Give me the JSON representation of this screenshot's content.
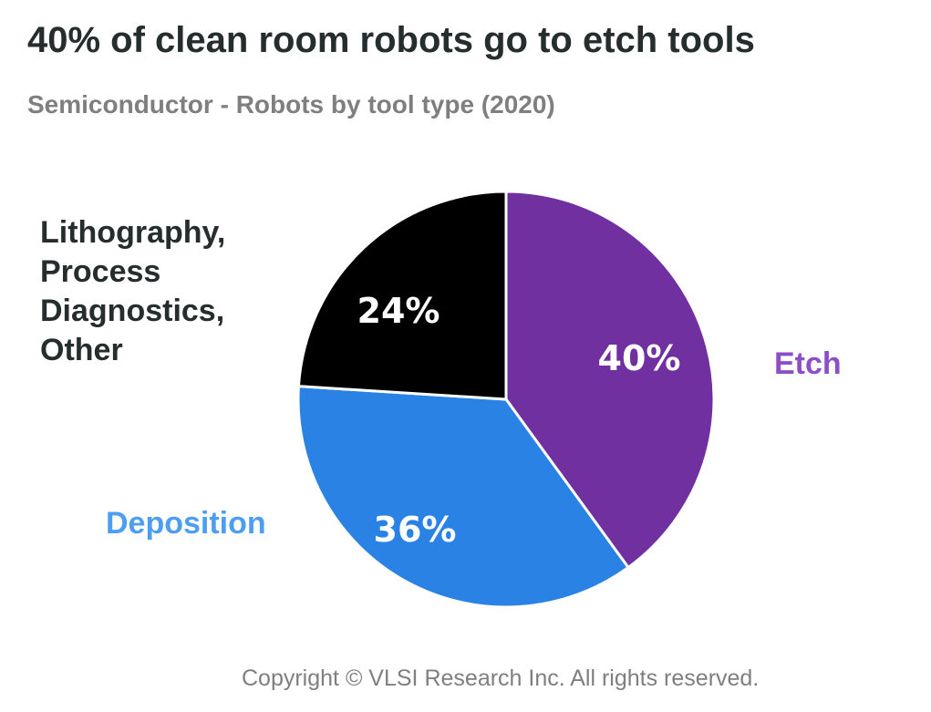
{
  "title": "40% of clean room robots go to etch tools",
  "subtitle": "Semiconductor - Robots by tool type (2020)",
  "copyright": "Copyright © VLSI Research Inc.  All rights reserved.",
  "chart_data": {
    "type": "pie",
    "categories": [
      "Etch",
      "Deposition",
      "Lithography, Process Diagnostics, Other"
    ],
    "values": [
      40,
      36,
      24
    ],
    "data_labels": [
      "40%",
      "36%",
      "24%"
    ],
    "category_label_lines": [
      [
        "Etch"
      ],
      [
        "Deposition"
      ],
      [
        "Lithography,",
        "Process",
        "Diagnostics,",
        "Other"
      ]
    ],
    "colors": [
      "#7030a0",
      "#2a82e4",
      "#000000"
    ],
    "category_label_colors": [
      "#8e4ec6",
      "#4e9ef0",
      "#262d2d"
    ],
    "start_angle_deg": 0,
    "direction": "clockwise"
  }
}
